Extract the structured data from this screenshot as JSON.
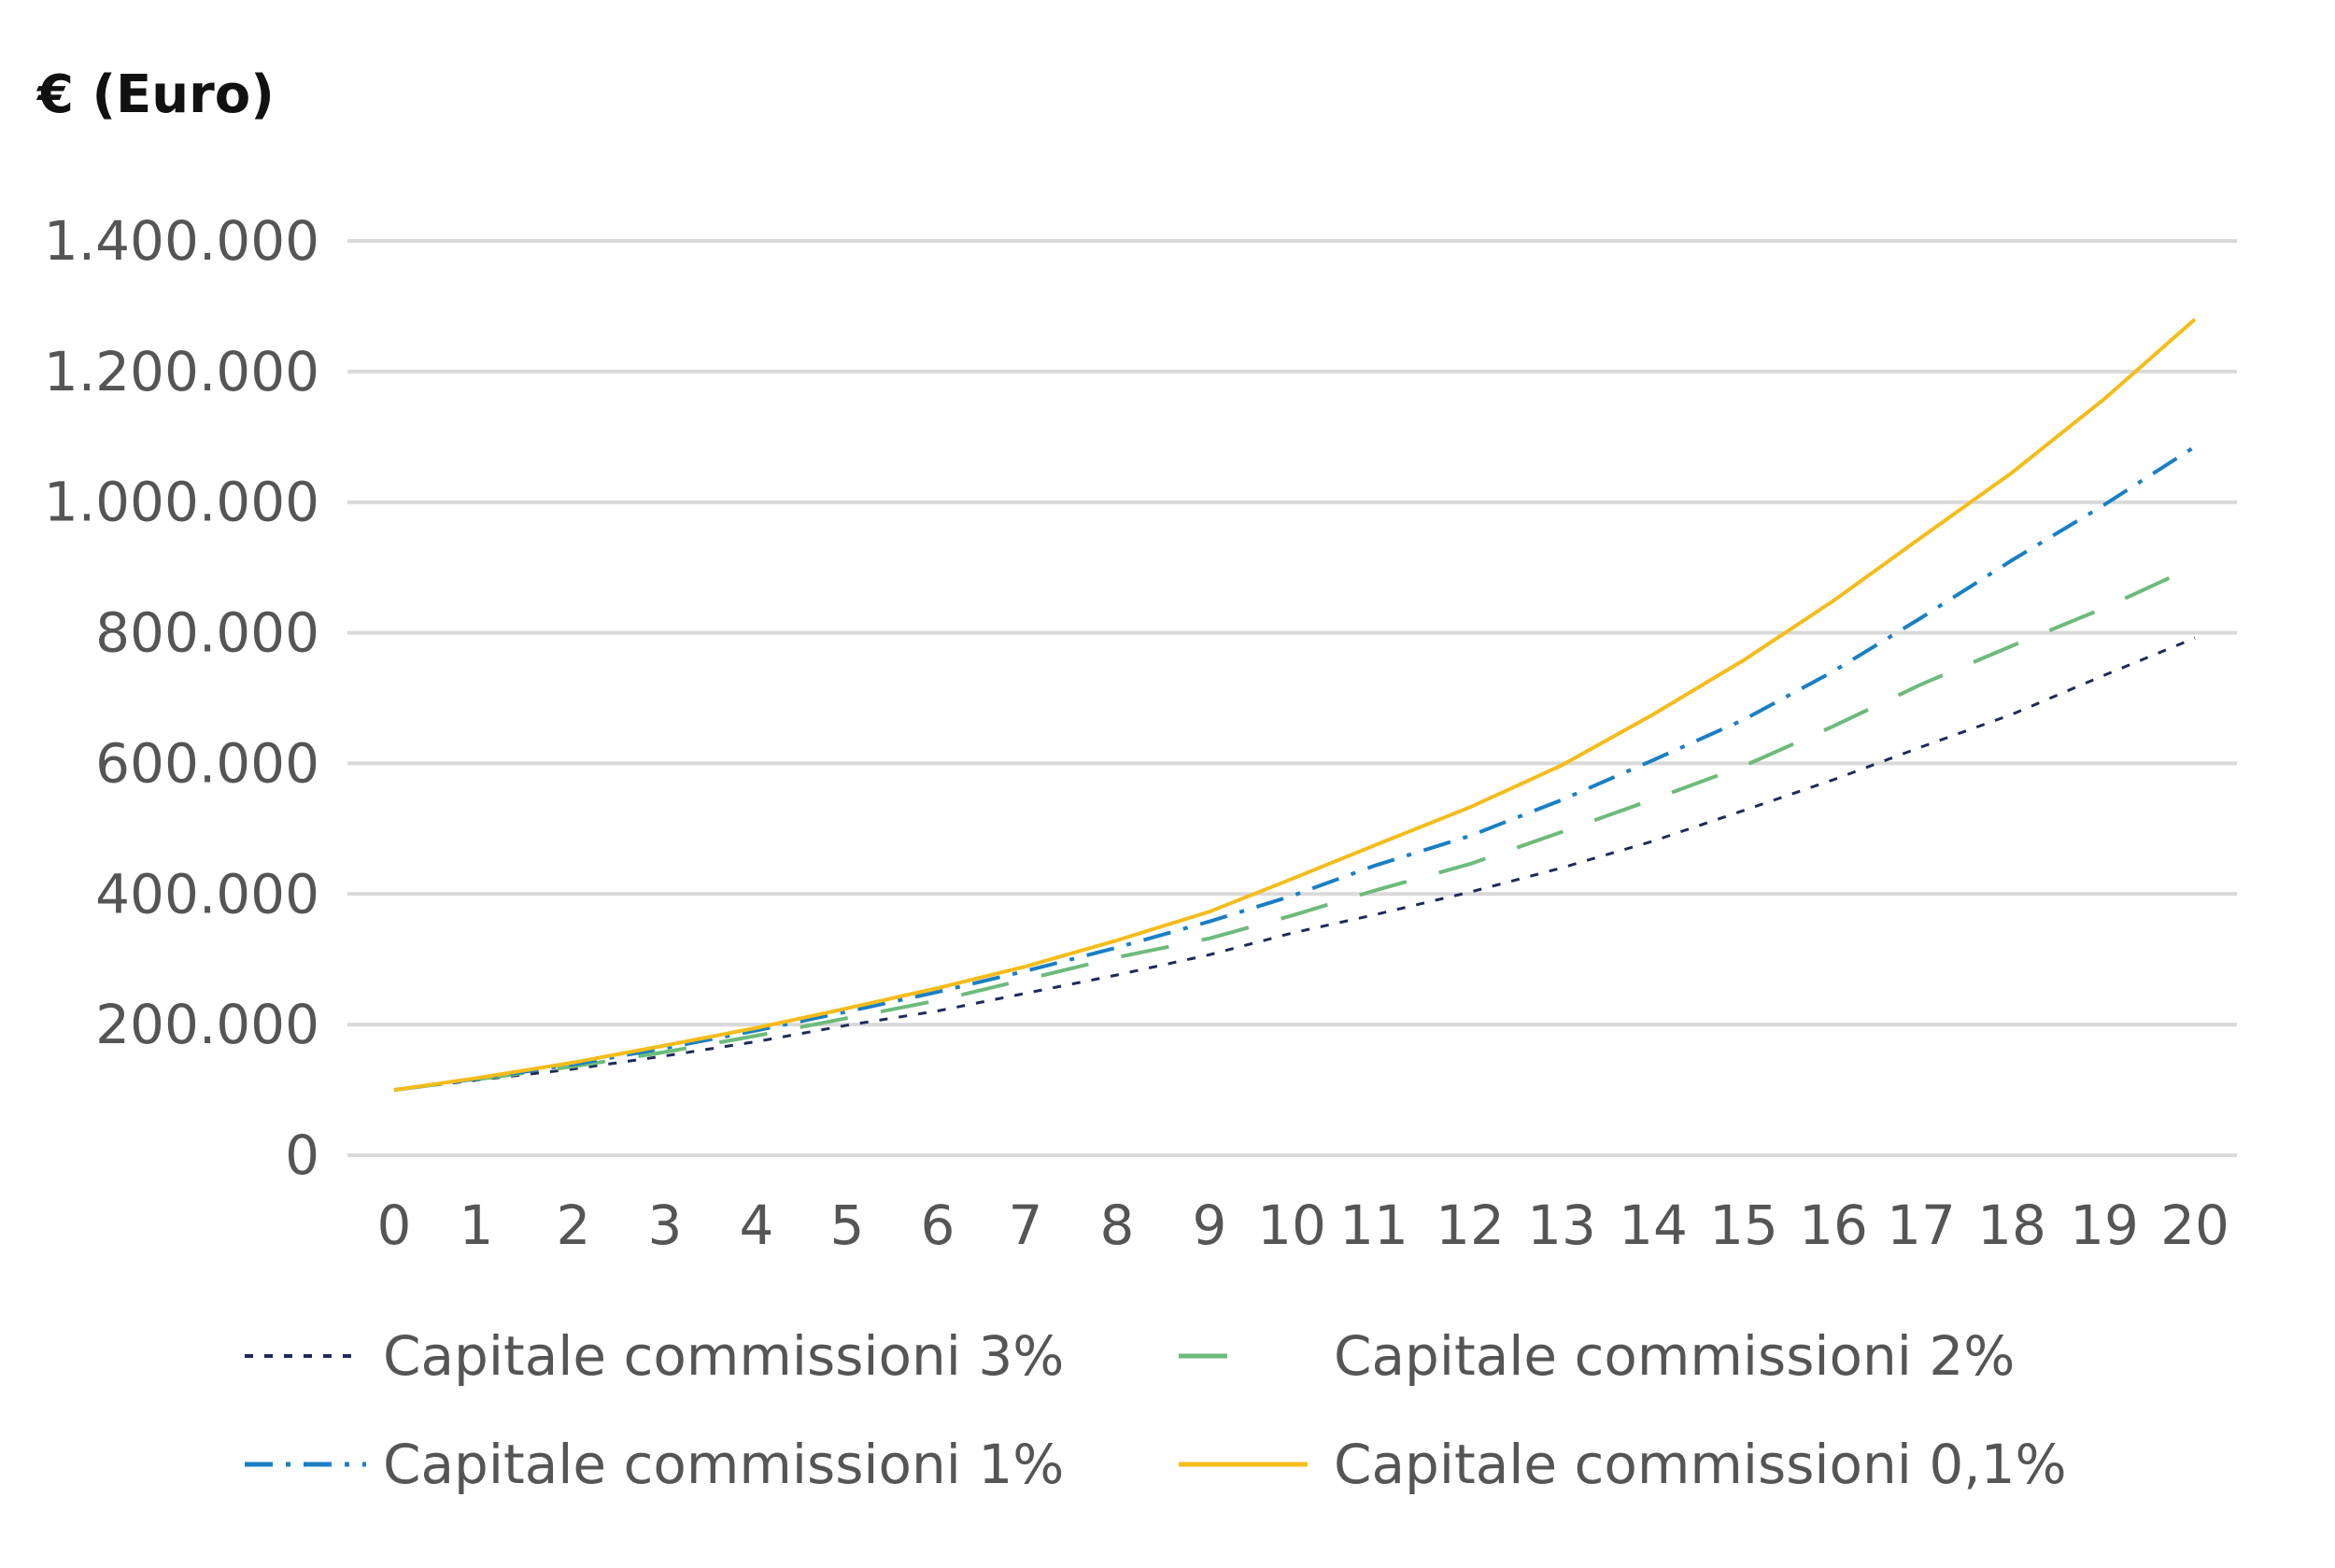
{
  "chart_data": {
    "type": "line",
    "title": "",
    "unit_label": "€ (Euro)",
    "xlabel": "",
    "ylabel": "",
    "x": [
      0,
      1,
      2,
      3,
      4,
      5,
      6,
      7,
      8,
      9,
      10,
      11,
      12,
      13,
      14,
      15,
      16,
      17,
      18,
      19,
      20
    ],
    "x_tick_labels": [
      "0",
      "1",
      "2",
      "3",
      "4",
      "5",
      "6",
      "7",
      "8",
      "9",
      "10",
      "11",
      "12",
      "13",
      "14",
      "15",
      "16",
      "17",
      "18",
      "19",
      "20"
    ],
    "ylim": [
      0,
      1400000
    ],
    "y_ticks": [
      0,
      200000,
      400000,
      600000,
      800000,
      1000000,
      1200000,
      1400000
    ],
    "y_tick_labels": [
      "0",
      "200.000",
      "400.000",
      "600.000",
      "800.000",
      "1.000.000",
      "1.200.000",
      "1.400.000"
    ],
    "grid": true,
    "legend_position": "bottom",
    "series": [
      {
        "name": "Capitale commissioni 3%",
        "color": "#1f2a5c",
        "dash": "dotted",
        "values": [
          100000,
          115000,
          132000,
          152000,
          174000,
          199000,
          221000,
          248000,
          276000,
          307000,
          340000,
          368000,
          403000,
          440000,
          481000,
          528000,
          575000,
          625000,
          675000,
          735000,
          792000
        ]
      },
      {
        "name": "Capitale commissioni 2%",
        "color": "#6dbb7a",
        "dash": "long-dash",
        "values": [
          100000,
          116000,
          136000,
          158000,
          183000,
          210000,
          237000,
          269000,
          303000,
          332000,
          367000,
          405000,
          446000,
          495000,
          545000,
          596000,
          657000,
          721000,
          780000,
          838000,
          902000
        ]
      },
      {
        "name": "Capitale commissioni 1%",
        "color": "#1a7fc4",
        "dash": "dash-dot",
        "values": [
          100000,
          117000,
          139000,
          164000,
          191000,
          220000,
          250000,
          282000,
          318000,
          358000,
          397000,
          443000,
          489000,
          544000,
          605000,
          667000,
          741000,
          823000,
          911000,
          996000,
          1085000
        ]
      },
      {
        "name": "Capitale commissioni 0,1%",
        "color": "#f5bc1a",
        "dash": "solid",
        "values": [
          100000,
          118000,
          142000,
          168000,
          195000,
          225000,
          256000,
          289000,
          329000,
          373000,
          423000,
          474000,
          533000,
          597000,
          675000,
          758000,
          849000,
          946000,
          1045000,
          1158000,
          1280000
        ]
      }
    ]
  }
}
